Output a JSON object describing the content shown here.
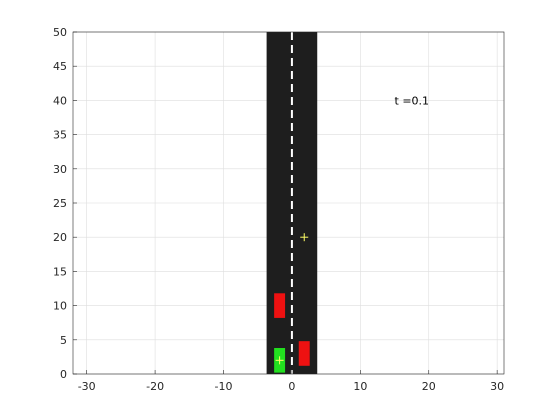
{
  "chart_data": {
    "type": "scatter",
    "title": "",
    "xlabel": "",
    "ylabel": "",
    "xlim": [
      -32,
      31
    ],
    "ylim": [
      0,
      50
    ],
    "x_ticks": [
      -30,
      -20,
      -10,
      0,
      10,
      20,
      30
    ],
    "y_ticks": [
      0,
      5,
      10,
      15,
      20,
      25,
      30,
      35,
      40,
      45,
      50
    ],
    "grid": true,
    "annotation": {
      "text": "t =0.1",
      "x": 15,
      "y": 40
    },
    "road": {
      "x_range": [
        -3.7,
        3.7
      ],
      "y_range": [
        0,
        50
      ],
      "center_line_x": 0,
      "color": "#1e1e1e",
      "lane_marking_color": "#ffffff"
    },
    "vehicles": [
      {
        "role": "ego",
        "color": "#22e01f",
        "x": -1.8,
        "y": 2,
        "width": 1.6,
        "length": 3.6
      },
      {
        "role": "obstacle",
        "color": "#ee1111",
        "x": -1.8,
        "y": 10,
        "width": 1.6,
        "length": 3.6
      },
      {
        "role": "obstacle",
        "color": "#ee1111",
        "x": 1.8,
        "y": 3,
        "width": 1.6,
        "length": 3.6
      }
    ],
    "markers": [
      {
        "x": -1.8,
        "y": 2,
        "symbol": "+",
        "color": "#ffff66"
      },
      {
        "x": 1.8,
        "y": 20,
        "symbol": "+",
        "color": "#ffff66"
      }
    ]
  }
}
